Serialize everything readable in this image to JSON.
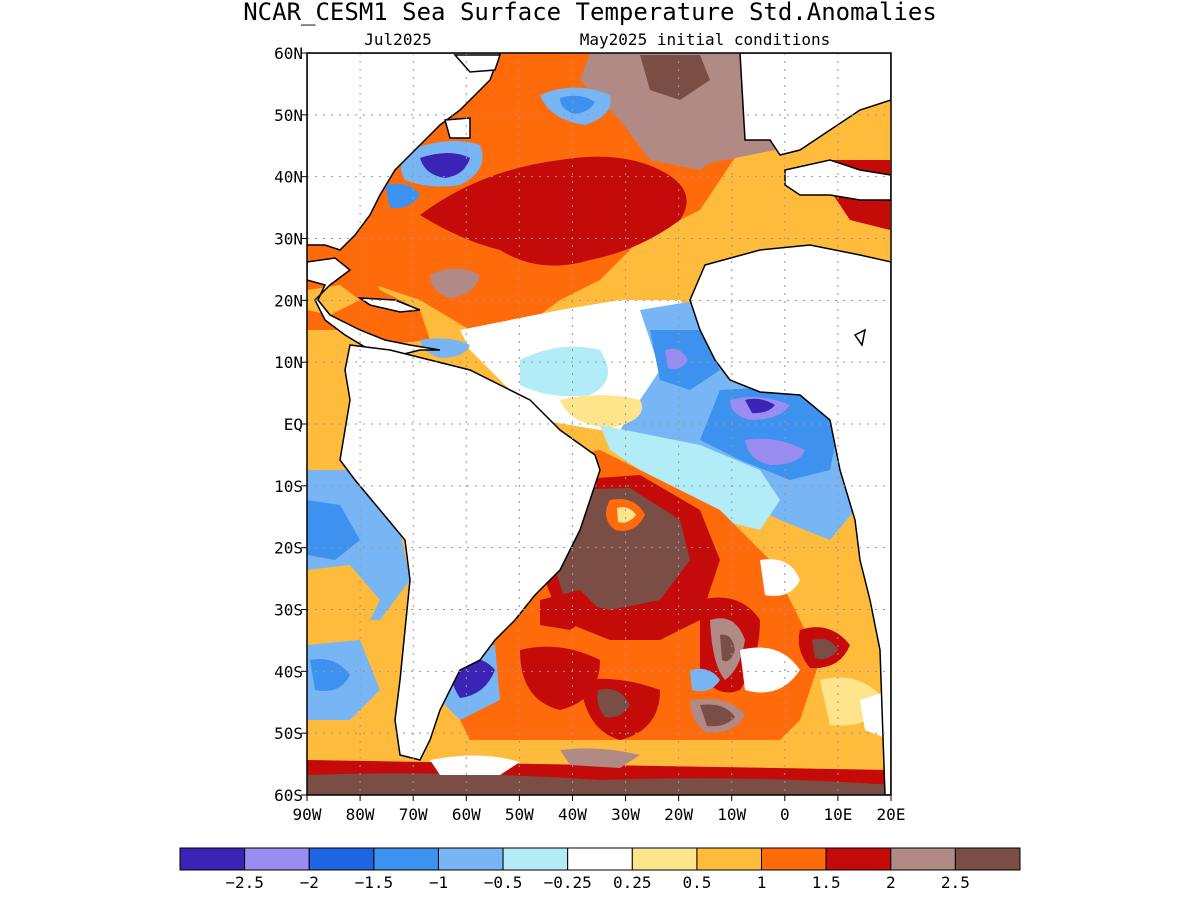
{
  "title": "NCAR_CESM1 Sea Surface Temperature Std.Anomalies",
  "subtitle_left": "Jul2025",
  "subtitle_right": "May2025 initial conditions",
  "lat_labels": [
    "60N",
    "50N",
    "40N",
    "30N",
    "20N",
    "10N",
    "EQ",
    "10S",
    "20S",
    "30S",
    "40S",
    "50S",
    "60S"
  ],
  "lon_labels": [
    "90W",
    "80W",
    "70W",
    "60W",
    "50W",
    "40W",
    "30W",
    "20W",
    "10W",
    "0",
    "10E",
    "20E"
  ],
  "colorbar": {
    "colors": [
      "#3a23b5",
      "#9b8cf2",
      "#1f64e0",
      "#3c92ee",
      "#78b5f5",
      "#b1ecf7",
      "#ffffff",
      "#fee58b",
      "#ffbc3c",
      "#ff6a0b",
      "#c50a0a",
      "#b18a85",
      "#7a4e44"
    ],
    "labels": [
      "−2.5",
      "−2",
      "−1.5",
      "−1",
      "−0.5",
      "−0.25",
      "0.25",
      "0.5",
      "1",
      "1.5",
      "2",
      "2.5"
    ]
  }
}
